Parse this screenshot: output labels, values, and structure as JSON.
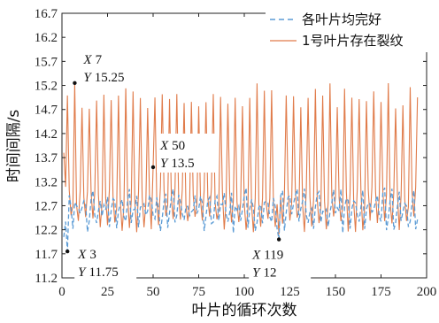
{
  "chart_data": {
    "type": "line",
    "xlabel": "叶片的循环次数",
    "ylabel": "时间间隔/s",
    "xlim": [
      0,
      200
    ],
    "ylim": [
      11.2,
      16.7
    ],
    "x_ticks": [
      "0",
      "25",
      "50",
      "75",
      "100",
      "125",
      "150",
      "175",
      "200"
    ],
    "y_ticks": [
      "11.2",
      "11.7",
      "12.2",
      "12.7",
      "13.2",
      "13.7",
      "14.2",
      "14.7",
      "15.2",
      "15.7",
      "16.2",
      "16.7"
    ],
    "grid": false,
    "legend_position": "top-right",
    "series": [
      {
        "name": "各叶片均完好",
        "color": "#5b9bd5",
        "style": "dashed",
        "x_start": 1,
        "x_end": 195
      },
      {
        "name": "1号叶片存在裂纹",
        "color": "#e07b4a",
        "style": "solid",
        "x_start": 1,
        "x_end": 195
      }
    ],
    "annotations": [
      {
        "x": 7,
        "y": 15.25,
        "x_label": "X",
        "x_text": "7",
        "y_label": "Y",
        "y_text": "15.25"
      },
      {
        "x": 50,
        "y": 13.5,
        "x_label": "X",
        "x_text": "50",
        "y_label": "Y",
        "y_text": "13.5"
      },
      {
        "x": 3,
        "y": 11.75,
        "x_label": "X",
        "x_text": "3",
        "y_label": "Y",
        "y_text": "11.75"
      },
      {
        "x": 119,
        "y": 12,
        "x_label": "X",
        "x_text": "119",
        "y_label": "Y",
        "y_text": "12"
      }
    ]
  }
}
